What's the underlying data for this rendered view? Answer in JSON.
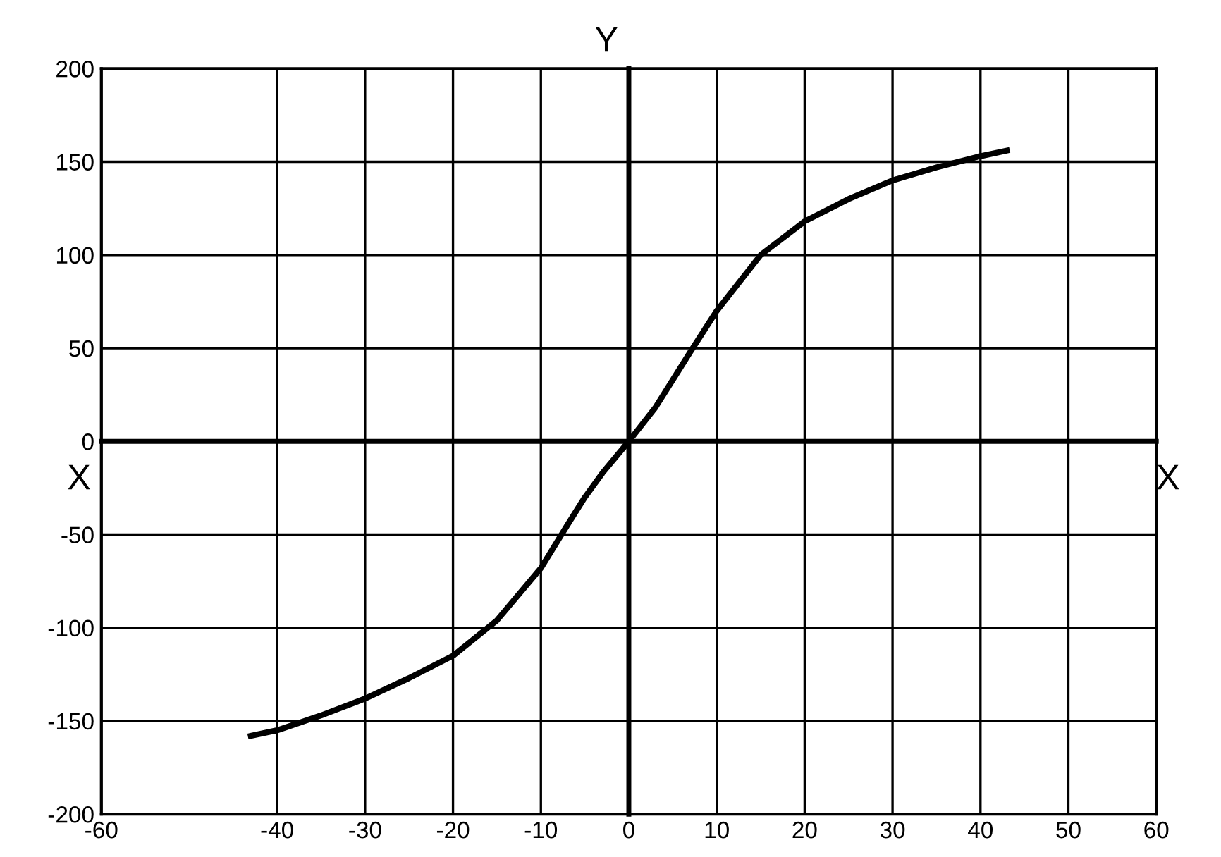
{
  "chart_data": {
    "type": "line",
    "xlabel": "X",
    "ylabel": "Y",
    "annotations": [
      "X"
    ],
    "x": [
      -43,
      -40,
      -35,
      -30,
      -25,
      -20,
      -15,
      -10,
      -7,
      -5,
      -3,
      0,
      3,
      5,
      7,
      10,
      15,
      20,
      25,
      30,
      35,
      40,
      43
    ],
    "series": [
      {
        "color": "#000000",
        "values": [
          -158,
          -155,
          -147,
          -138,
          -127,
          -115,
          -96,
          -68,
          -45,
          -30,
          -17,
          0,
          18,
          33,
          48,
          70,
          100,
          118,
          130,
          140,
          147,
          153,
          156
        ]
      }
    ],
    "xlim": [
      -60,
      60
    ],
    "ylim": [
      -200,
      200
    ],
    "xticks": [
      -60,
      -40,
      -30,
      -20,
      -10,
      0,
      10,
      20,
      30,
      40,
      50,
      60
    ],
    "yticks": [
      -200,
      -150,
      -100,
      -50,
      0,
      50,
      100,
      150,
      200
    ],
    "grid": true,
    "marker": "none",
    "line_style": "solid"
  }
}
